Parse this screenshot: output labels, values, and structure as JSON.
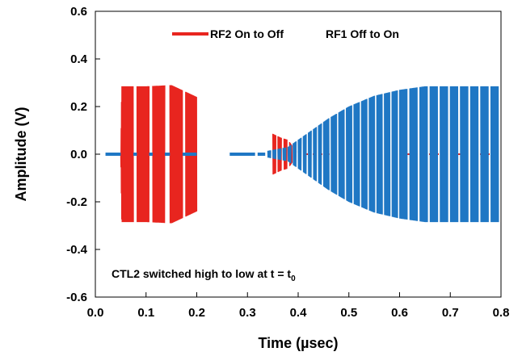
{
  "chart_data": {
    "type": "line",
    "xlabel": "Time (µsec)",
    "ylabel": "Amplitude (V)",
    "xlim": [
      0,
      0.8
    ],
    "ylim": [
      -0.6,
      0.6
    ],
    "x_ticks": [
      "0.0",
      "0.1",
      "0.2",
      "0.3",
      "0.4",
      "0.5",
      "0.6",
      "0.7",
      "0.8"
    ],
    "y_ticks": [
      "-0.6",
      "-0.4",
      "-0.2",
      "0.0",
      "0.2",
      "0.4",
      "0.6"
    ],
    "grid": false,
    "legend_position": "top",
    "annotation": {
      "text": "CTL2 switched high to low at t = t",
      "subscript": "0"
    },
    "series": [
      {
        "name": "RF2 On to Off",
        "color": "#e8251f",
        "envelope": [
          {
            "t": 0.05,
            "amplitude": 0.0
          },
          {
            "t": 0.052,
            "amplitude": 0.285
          },
          {
            "t": 0.1,
            "amplitude": 0.285
          },
          {
            "t": 0.15,
            "amplitude": 0.29
          },
          {
            "t": 0.2,
            "amplitude": 0.24
          },
          {
            "t": 0.365,
            "amplitude": 0.07
          },
          {
            "t": 0.38,
            "amplitude": 0.06
          },
          {
            "t": 0.4,
            "amplitude": 0.0
          }
        ]
      },
      {
        "name": "RF1 Off to On",
        "color": "#1f77c4",
        "envelope": [
          {
            "t": 0.02,
            "amplitude": 0.005
          },
          {
            "t": 0.33,
            "amplitude": 0.01
          },
          {
            "t": 0.38,
            "amplitude": 0.03
          },
          {
            "t": 0.42,
            "amplitude": 0.09
          },
          {
            "t": 0.46,
            "amplitude": 0.15
          },
          {
            "t": 0.5,
            "amplitude": 0.2
          },
          {
            "t": 0.55,
            "amplitude": 0.245
          },
          {
            "t": 0.6,
            "amplitude": 0.27
          },
          {
            "t": 0.65,
            "amplitude": 0.285
          },
          {
            "t": 0.8,
            "amplitude": 0.285
          }
        ]
      }
    ]
  }
}
